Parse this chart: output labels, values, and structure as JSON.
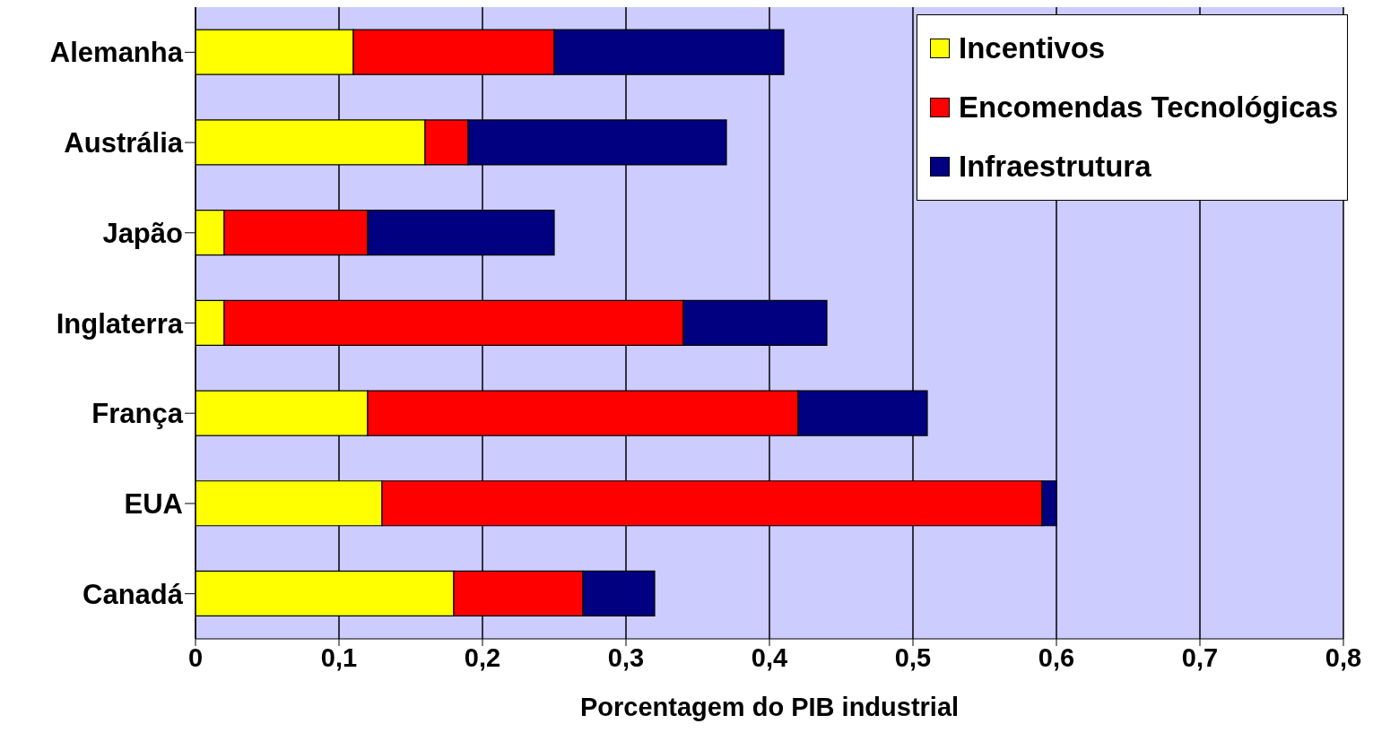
{
  "chart_data": {
    "type": "bar",
    "orientation": "horizontal",
    "stacked": true,
    "xlabel": "Porcentagem do PIB industrial",
    "categories": [
      "Alemanha",
      "Austrália",
      "Japão",
      "Inglaterra",
      "França",
      "EUA",
      "Canadá"
    ],
    "series": [
      {
        "name": "Incentivos",
        "color": "#ffff00",
        "values": [
          0.11,
          0.16,
          0.02,
          0.02,
          0.12,
          0.13,
          0.18
        ]
      },
      {
        "name": "Encomendas Tecnológicas",
        "color": "#ff0000",
        "values": [
          0.14,
          0.03,
          0.1,
          0.32,
          0.3,
          0.46,
          0.09
        ]
      },
      {
        "name": "Infraestrutura",
        "color": "#000080",
        "values": [
          0.16,
          0.18,
          0.13,
          0.1,
          0.09,
          0.01,
          0.05
        ]
      }
    ],
    "xlim": [
      0,
      0.8
    ],
    "xticks": [
      0,
      {
        "value": 0.1,
        "label": "0,1"
      },
      {
        "value": 0.2,
        "label": "0,2"
      },
      {
        "value": 0.3,
        "label": "0,3"
      },
      {
        "value": 0.4,
        "label": "0,4"
      },
      {
        "value": 0.5,
        "label": "0,5"
      },
      {
        "value": 0.6,
        "label": "0,6"
      },
      {
        "value": 0.7,
        "label": "0,7"
      },
      {
        "value": 0.8,
        "label": "0,8"
      }
    ],
    "grid": "x",
    "legend": "top right"
  }
}
